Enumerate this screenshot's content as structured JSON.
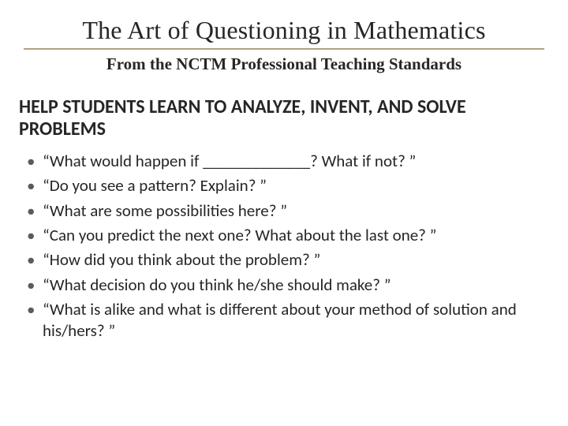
{
  "title": {
    "text": "The Art of Questioning in Mathematics",
    "fontsize": 32,
    "color": "#262626",
    "underline_color": "#b0a087"
  },
  "subtitle": {
    "text": "From the NCTM Professional Teaching Standards",
    "fontsize": 21,
    "color": "#262626"
  },
  "section_heading": {
    "text": "HELP STUDENTS LEARN TO ANALYZE, INVENT, AND SOLVE PROBLEMS",
    "fontsize": 24,
    "color": "#262626"
  },
  "bullets": {
    "fontsize": 21,
    "color": "#262626",
    "bullet_color": "#5b5b5b",
    "items": [
      "“What would happen if _____________? What if not? ”",
      "“Do you see a pattern? Explain? ”",
      "“What are some possibilities here? ”",
      "“Can you predict the next one? What about the last one? ”",
      "“How did you think about the problem? ”",
      "“What decision do you think he/she should make? ”",
      "“What is alike and what is different about your method of solution and his/hers? ”"
    ]
  },
  "background_color": "#ffffff"
}
